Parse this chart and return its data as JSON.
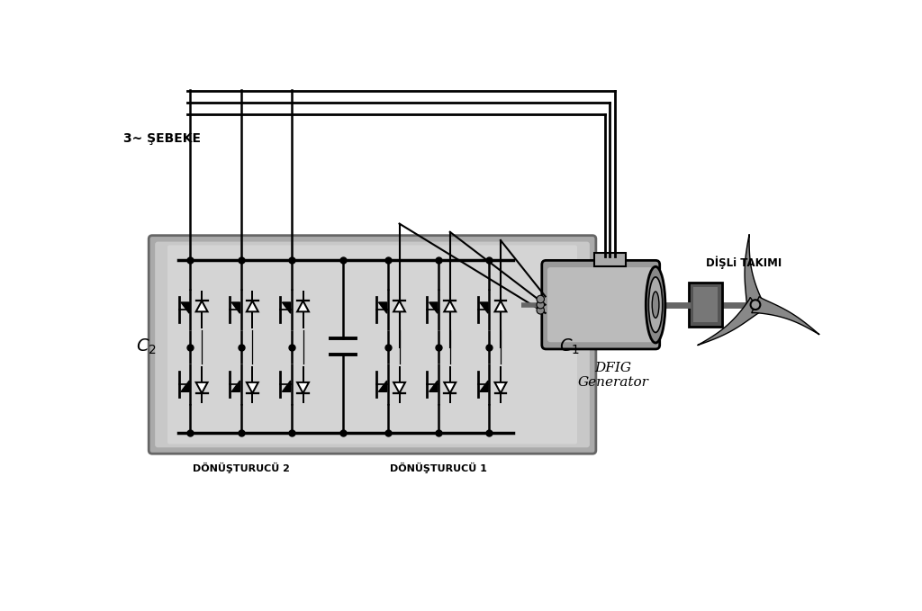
{
  "background_color": "#ffffff",
  "text_sebeke": "3~ ŞEBEKE",
  "text_dfig": "DFIG\nGenerator",
  "text_disli": "DİŞLi TAKIMI",
  "text_c1": "C₁",
  "text_c2": "C₂",
  "text_donusturucu1": "DÖNÜŞTURUCÜ 1",
  "text_donusturucu2": "DÖNÜŞTURUCÜ 2",
  "conv_outer_color": "#aaaaaa",
  "conv_inner_color": "#c8c8c8",
  "conv_center_color": "#d4d4d4",
  "gen_body_color": "#999999",
  "gen_body_light": "#bbbbbb",
  "gen_end_color": "#888888",
  "gearbox_dark": "#555555",
  "gearbox_light": "#777777",
  "blade_color": "#888888",
  "conn_box_color": "#aaaaaa"
}
